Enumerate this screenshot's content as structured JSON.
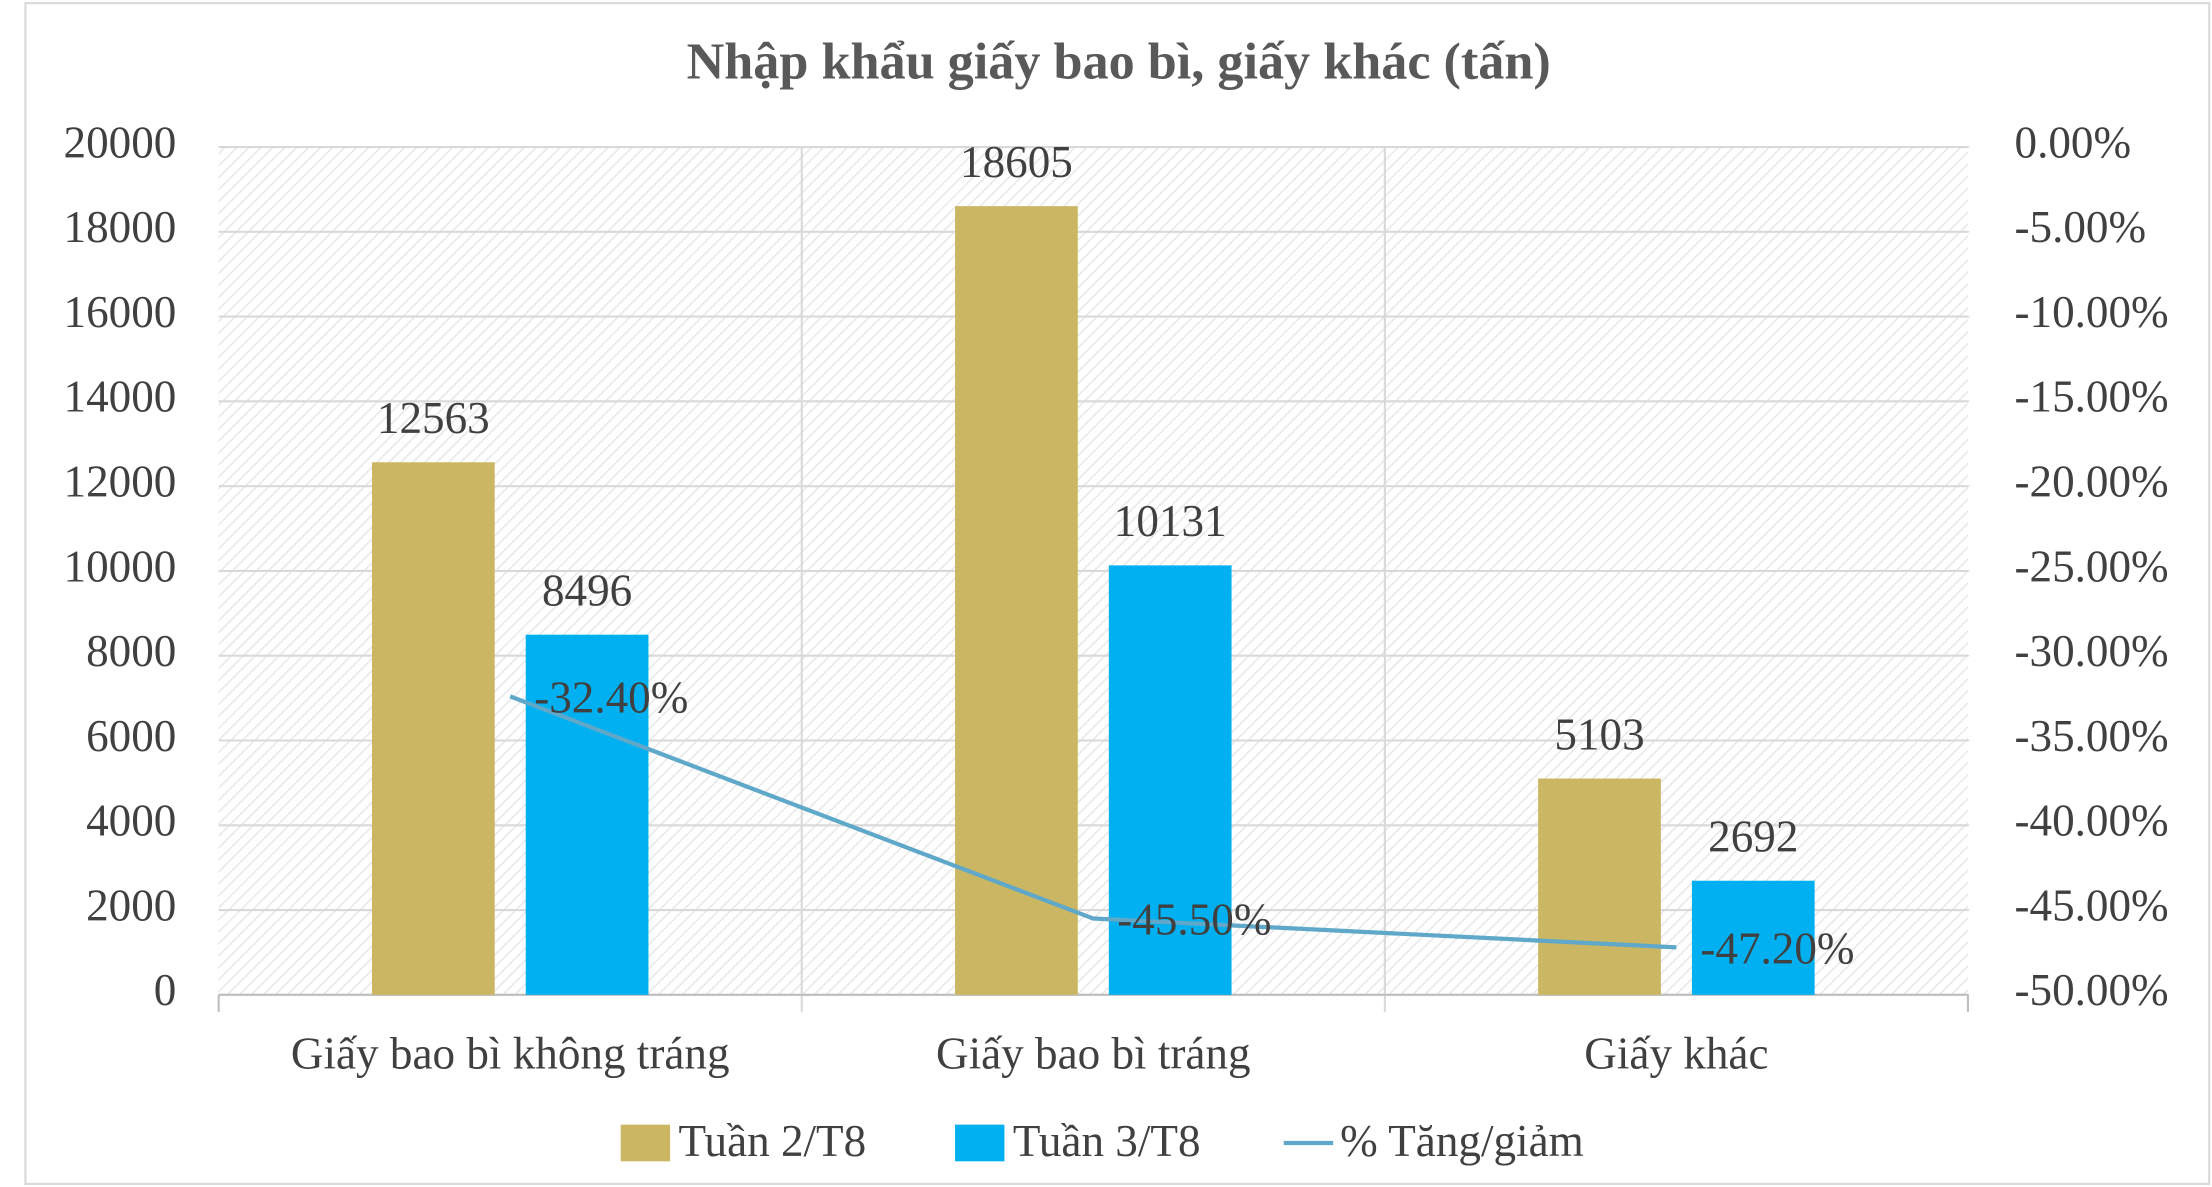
{
  "chart_data": {
    "type": "bar",
    "title": "Nhập khẩu giấy bao bì, giấy khác (tấn)",
    "categories": [
      "Giấy bao bì không tráng",
      "Giấy bao bì tráng",
      "Giấy khác"
    ],
    "series": [
      {
        "name": "Tuần 2/T8",
        "color": "#cbb663",
        "values": [
          12563,
          18605,
          5103
        ]
      },
      {
        "name": "Tuần 3/T8",
        "color": "#00b0f0",
        "values": [
          8496,
          10131,
          2692
        ]
      },
      {
        "name": "% Tăng/giảm",
        "type": "line",
        "axis": "y2",
        "color": "#5fa8c9",
        "values": [
          -32.4,
          -45.5,
          -47.2
        ],
        "value_labels": [
          "-32.40%",
          "-45.50%",
          "-47.20%"
        ]
      }
    ],
    "ylim": [
      0,
      20000
    ],
    "yticks": [
      0,
      2000,
      4000,
      6000,
      8000,
      10000,
      12000,
      14000,
      16000,
      18000,
      20000
    ],
    "y2lim": [
      -50,
      0
    ],
    "y2ticks": [
      {
        "value": -50,
        "label": "-50.00%"
      },
      {
        "value": -45,
        "label": "-45.00%"
      },
      {
        "value": -40,
        "label": "-40.00%"
      },
      {
        "value": -35,
        "label": "-35.00%"
      },
      {
        "value": -30,
        "label": "-30.00%"
      },
      {
        "value": -25,
        "label": "-25.00%"
      },
      {
        "value": -20,
        "label": "-20.00%"
      },
      {
        "value": -15,
        "label": "-15.00%"
      },
      {
        "value": -10,
        "label": "-10.00%"
      },
      {
        "value": -5,
        "label": "-5.00%"
      },
      {
        "value": 0,
        "label": "0.00%"
      }
    ],
    "grid": true,
    "legend": "bottom"
  }
}
